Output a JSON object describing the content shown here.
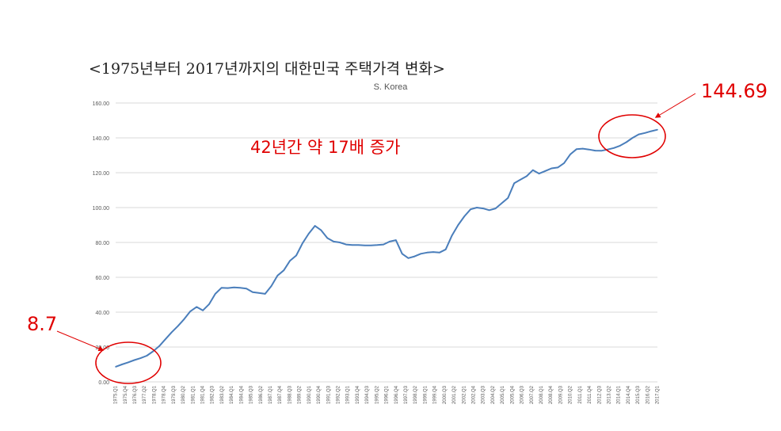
{
  "heading": "<1975년부터 2017년까지의 대한민국 주택가격 변화>",
  "annotations": {
    "main": "42년간 약 17배 증가",
    "start_value": "8.7",
    "end_value": "144.69"
  },
  "colors": {
    "line": "#4a7ebb",
    "annotation": "#e00000",
    "grid": "#d9d9d9"
  },
  "chart_data": {
    "type": "line",
    "title": "S. Korea",
    "xlabel": "",
    "ylabel": "",
    "ylim": [
      0,
      160
    ],
    "yticks": [
      "0.00",
      "20.00",
      "40.00",
      "60.00",
      "80.00",
      "100.00",
      "120.00",
      "140.00",
      "160.00"
    ],
    "grid": true,
    "legend": "none",
    "xtick_labels": [
      "1975.Q1",
      "1975.Q4",
      "1976.Q3",
      "1977.Q2",
      "1978.Q1",
      "1978.Q4",
      "1979.Q3",
      "1980.Q2",
      "1981.Q1",
      "1981.Q4",
      "1982.Q3",
      "1983.Q2",
      "1984.Q1",
      "1984.Q4",
      "1985.Q3",
      "1986.Q2",
      "1987.Q1",
      "1987.Q4",
      "1988.Q3",
      "1989.Q2",
      "1990.Q1",
      "1990.Q4",
      "1991.Q3",
      "1992.Q2",
      "1993.Q1",
      "1993.Q4",
      "1994.Q3",
      "1995.Q2",
      "1996.Q1",
      "1996.Q4",
      "1997.Q3",
      "1998.Q2",
      "1999.Q1",
      "1999.Q4",
      "2000.Q3",
      "2001.Q2",
      "2002.Q1",
      "2002.Q4",
      "2003.Q3",
      "2004.Q2",
      "2005.Q1",
      "2005.Q4",
      "2006.Q3",
      "2007.Q2",
      "2008.Q1",
      "2008.Q4",
      "2009.Q3",
      "2010.Q2",
      "2011.Q1",
      "2011.Q4",
      "2012.Q3",
      "2013.Q2",
      "2014.Q1",
      "2014.Q4",
      "2015.Q3",
      "2016.Q2",
      "2017.Q1"
    ],
    "series": [
      {
        "values": [
          8.7,
          10.0,
          11.2,
          12.5,
          13.6,
          15.0,
          17.5,
          20.5,
          24.5,
          28.5,
          32.0,
          36.0,
          40.5,
          43.0,
          41.0,
          44.5,
          50.5,
          54.0,
          53.8,
          54.2,
          54.0,
          53.5,
          51.5,
          51.0,
          50.5,
          55.0,
          61.0,
          64.0,
          69.5,
          72.5,
          79.5,
          85.0,
          89.5,
          87.0,
          82.5,
          80.5,
          80.0,
          78.8,
          78.5,
          78.5,
          78.3,
          78.3,
          78.5,
          78.8,
          80.5,
          81.3,
          73.5,
          71.0,
          72.0,
          73.5,
          74.2,
          74.5,
          74.2,
          76.0,
          84.0,
          90.0,
          95.0,
          99.0,
          100.0,
          99.5,
          98.5,
          99.5,
          102.5,
          105.5,
          114.0,
          116.0,
          118.0,
          121.5,
          119.5,
          121.0,
          122.5,
          123.0,
          125.5,
          130.5,
          133.5,
          133.8,
          133.3,
          132.7,
          132.6,
          133.3,
          134.2,
          135.5,
          137.5,
          140.0,
          142.0,
          142.8,
          143.8,
          144.69
        ]
      }
    ]
  }
}
